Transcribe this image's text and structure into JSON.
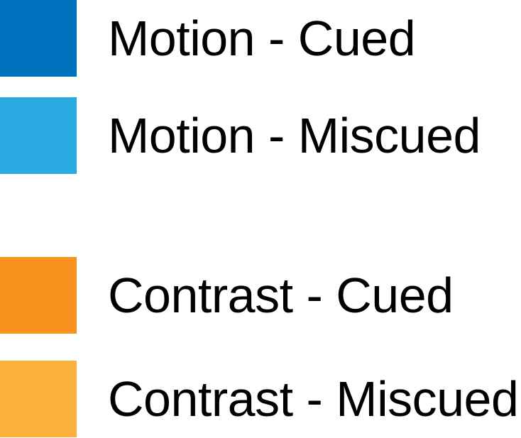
{
  "chart_data": {
    "type": "bar",
    "legend": [
      {
        "label": "Motion - Cued",
        "color": "#0071BC"
      },
      {
        "label": "Motion - Miscued",
        "color": "#29ABE2"
      },
      {
        "label": "Contrast - Cued",
        "color": "#F7931E"
      },
      {
        "label": "Contrast - Miscued",
        "color": "#FBB03B"
      }
    ]
  }
}
